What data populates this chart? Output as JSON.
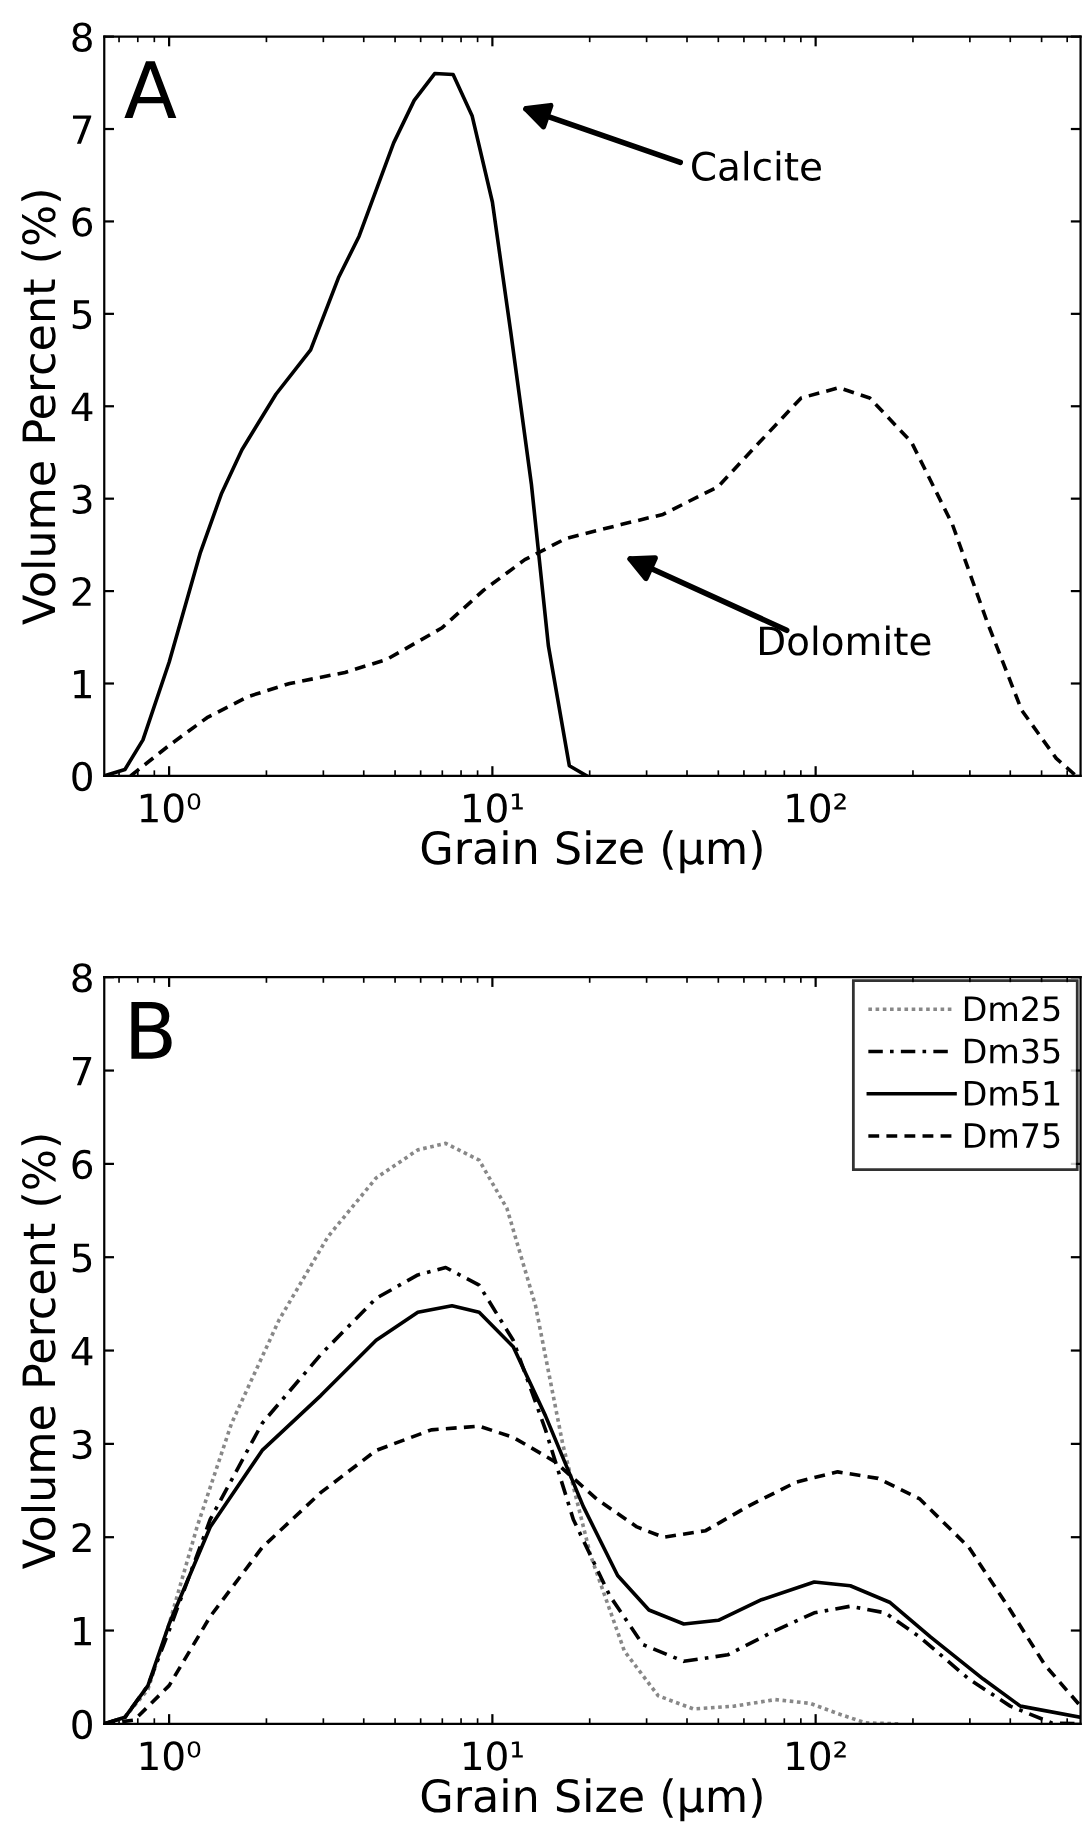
{
  "chart_data": [
    {
      "type": "line",
      "xlabel": "Grain Size (µm)",
      "ylabel": "Volume Percent (%)",
      "log": "x",
      "xlim": [
        0.63,
        660
      ],
      "ylim": [
        0,
        8
      ],
      "xticks": [
        {
          "value": 1,
          "label": "10⁰"
        },
        {
          "value": 10,
          "label": "10¹"
        },
        {
          "value": 100,
          "label": "10²"
        }
      ],
      "yticks": [
        0,
        1,
        2,
        3,
        4,
        5,
        6,
        7,
        8
      ],
      "grid": false,
      "legend": false,
      "series": [
        {
          "color": "#000000",
          "line_style": "solid",
          "x": [
            0.63,
            0.73,
            0.83,
            1.0,
            1.25,
            1.45,
            1.68,
            2.14,
            2.74,
            3.34,
            3.87,
            4.95,
            5.73,
            6.63,
            7.56,
            8.66,
            10,
            11.4,
            13.2,
            14.9,
            17.3,
            19.6
          ],
          "values": [
            0,
            0.07,
            0.39,
            1.23,
            2.42,
            3.05,
            3.53,
            4.13,
            4.61,
            5.39,
            5.84,
            6.85,
            7.31,
            7.6,
            7.59,
            7.14,
            6.21,
            4.8,
            3.16,
            1.41,
            0.11,
            0
          ]
        },
        {
          "color": "#000000",
          "line_style": "dashed",
          "x": [
            0.76,
            1.0,
            1.31,
            1.76,
            2.36,
            3.5,
            4.71,
            6.97,
            9.4,
            12.6,
            16.9,
            25,
            33.7,
            49.9,
            67,
            90.2,
            118,
            147,
            198,
            265,
            339,
            434,
            555,
            640
          ],
          "values": [
            0,
            0.33,
            0.63,
            0.86,
            1.0,
            1.12,
            1.26,
            1.6,
            2.01,
            2.34,
            2.57,
            2.72,
            2.83,
            3.13,
            3.61,
            4.09,
            4.2,
            4.09,
            3.61,
            2.72,
            1.67,
            0.71,
            0.19,
            0
          ]
        }
      ],
      "annotations": [
        "A",
        "Calcite",
        "Dolomite"
      ]
    },
    {
      "type": "line",
      "xlabel": "Grain Size (µm)",
      "ylabel": "Volume Percent (%)",
      "log": "x",
      "xlim": [
        0.63,
        660
      ],
      "ylim": [
        0,
        8
      ],
      "xticks": [
        {
          "value": 1,
          "label": "10⁰"
        },
        {
          "value": 10,
          "label": "10¹"
        },
        {
          "value": 100,
          "label": "10²"
        }
      ],
      "yticks": [
        0,
        1,
        2,
        3,
        4,
        5,
        6,
        7,
        8
      ],
      "grid": false,
      "legend": "top right",
      "series": [
        {
          "name": "Dm25",
          "color": "#888888",
          "line_style": "dotted",
          "x": [
            0.63,
            0.73,
            0.86,
            1.0,
            1.22,
            1.56,
            2.19,
            3.1,
            4.37,
            5.88,
            7.17,
            9.1,
            11.1,
            13.6,
            16.5,
            20.1,
            25.6,
            32.6,
            41.9,
            56,
            75,
            96,
            117,
            143,
            182
          ],
          "values": [
            0,
            0.07,
            0.37,
            1.07,
            2.11,
            3.22,
            4.33,
            5.22,
            5.85,
            6.15,
            6.22,
            6.04,
            5.52,
            4.48,
            3.0,
            1.81,
            0.78,
            0.3,
            0.16,
            0.19,
            0.26,
            0.22,
            0.11,
            0.01,
            0
          ]
        },
        {
          "name": "Dm35",
          "color": "#000000",
          "line_style": "dashdot",
          "x": [
            0.63,
            0.73,
            0.86,
            1.0,
            1.34,
            1.94,
            2.95,
            4.37,
            5.88,
            7.17,
            9.1,
            11.6,
            14.6,
            17.8,
            23.1,
            29.2,
            39.1,
            53.5,
            75,
            99,
            128,
            164,
            210,
            298,
            400,
            537,
            660
          ],
          "values": [
            0,
            0.07,
            0.41,
            1.0,
            2.19,
            3.22,
            3.96,
            4.56,
            4.81,
            4.89,
            4.7,
            4.11,
            3.15,
            2.19,
            1.37,
            0.85,
            0.67,
            0.74,
            1.0,
            1.19,
            1.26,
            1.19,
            0.93,
            0.48,
            0.19,
            0.01,
            0
          ]
        },
        {
          "name": "Dm51",
          "color": "#000000",
          "line_style": "solid",
          "x": [
            0.63,
            0.73,
            0.86,
            1.0,
            1.34,
            1.94,
            2.95,
            4.37,
            5.88,
            7.5,
            9.1,
            11.6,
            14.6,
            19.1,
            24.4,
            30.5,
            39.1,
            50,
            68,
            99,
            128,
            170,
            227,
            330,
            430,
            660
          ],
          "values": [
            0,
            0.07,
            0.41,
            1.07,
            2.11,
            2.93,
            3.52,
            4.11,
            4.41,
            4.48,
            4.41,
            4.04,
            3.3,
            2.33,
            1.59,
            1.22,
            1.07,
            1.11,
            1.33,
            1.52,
            1.48,
            1.3,
            0.93,
            0.48,
            0.19,
            0.07
          ]
        },
        {
          "name": "Dm75",
          "color": "#000000",
          "line_style": "dashed",
          "x": [
            0.63,
            0.78,
            1.0,
            1.34,
            1.94,
            2.95,
            4.37,
            6.47,
            9.1,
            11.6,
            15.6,
            21,
            28,
            33.8,
            45.7,
            61.7,
            87,
            117,
            156,
            210,
            298,
            400,
            512,
            660
          ],
          "values": [
            0,
            0.04,
            0.41,
            1.15,
            1.89,
            2.48,
            2.93,
            3.15,
            3.19,
            3.07,
            2.81,
            2.41,
            2.11,
            2.0,
            2.07,
            2.33,
            2.59,
            2.7,
            2.63,
            2.41,
            1.89,
            1.22,
            0.63,
            0.19
          ]
        }
      ],
      "annotations": [
        "B"
      ]
    }
  ]
}
